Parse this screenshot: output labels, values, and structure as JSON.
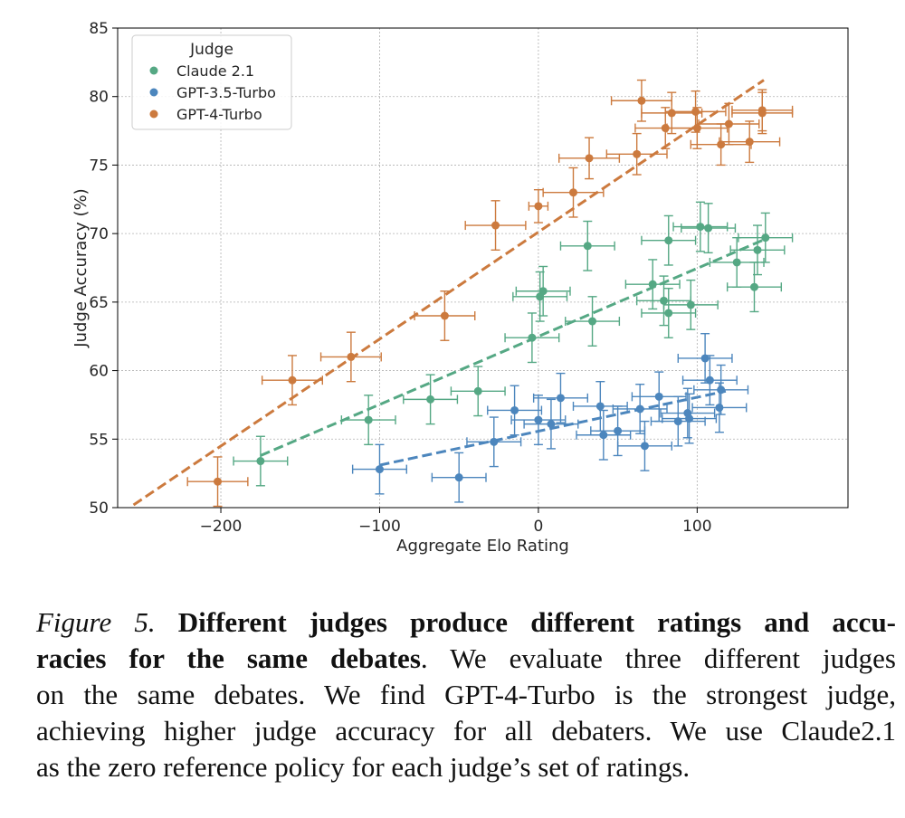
{
  "chart_data": {
    "type": "scatter",
    "xlabel": "Aggregate Elo Rating",
    "ylabel": "Judge Accuracy (%)",
    "xlim": [
      -265,
      195
    ],
    "ylim": [
      50,
      85
    ],
    "xticks": [
      -200,
      -100,
      0,
      100
    ],
    "xtick_labels": [
      "−200",
      "−100",
      "0",
      "100"
    ],
    "yticks": [
      50,
      55,
      60,
      65,
      70,
      75,
      80,
      85
    ],
    "ytick_labels": [
      "50",
      "55",
      "60",
      "65",
      "70",
      "75",
      "80",
      "85"
    ],
    "grid": true,
    "legend": {
      "title": "Judge",
      "placement": "top-left"
    },
    "series": [
      {
        "name": "Claude 2.1",
        "color": "#55a884",
        "points": [
          {
            "x": -175,
            "y": 53.4,
            "xerr": 17,
            "yerr": 1.8
          },
          {
            "x": -107,
            "y": 56.4,
            "xerr": 17,
            "yerr": 1.8
          },
          {
            "x": -68,
            "y": 57.9,
            "xerr": 17,
            "yerr": 1.8
          },
          {
            "x": -38,
            "y": 58.5,
            "xerr": 17,
            "yerr": 1.8
          },
          {
            "x": -4,
            "y": 62.4,
            "xerr": 17,
            "yerr": 1.8
          },
          {
            "x": 1,
            "y": 65.4,
            "xerr": 17,
            "yerr": 1.8
          },
          {
            "x": 3,
            "y": 65.8,
            "xerr": 17,
            "yerr": 1.8
          },
          {
            "x": 34,
            "y": 63.6,
            "xerr": 17,
            "yerr": 1.8
          },
          {
            "x": 31,
            "y": 69.1,
            "xerr": 17,
            "yerr": 1.8
          },
          {
            "x": 72,
            "y": 66.3,
            "xerr": 17,
            "yerr": 1.8
          },
          {
            "x": 79,
            "y": 65.1,
            "xerr": 17,
            "yerr": 1.8
          },
          {
            "x": 82,
            "y": 64.2,
            "xerr": 17,
            "yerr": 1.8
          },
          {
            "x": 82,
            "y": 69.5,
            "xerr": 17,
            "yerr": 1.8
          },
          {
            "x": 96,
            "y": 64.8,
            "xerr": 17,
            "yerr": 1.8
          },
          {
            "x": 102,
            "y": 70.5,
            "xerr": 17,
            "yerr": 1.8
          },
          {
            "x": 107,
            "y": 70.4,
            "xerr": 17,
            "yerr": 1.8
          },
          {
            "x": 125,
            "y": 67.9,
            "xerr": 17,
            "yerr": 1.8
          },
          {
            "x": 136,
            "y": 66.1,
            "xerr": 17,
            "yerr": 1.8
          },
          {
            "x": 138,
            "y": 68.8,
            "xerr": 17,
            "yerr": 1.8
          },
          {
            "x": 143,
            "y": 69.7,
            "xerr": 17,
            "yerr": 1.8
          }
        ],
        "trend": {
          "x": [
            -175,
            145
          ],
          "y": [
            53.8,
            69.7
          ]
        }
      },
      {
        "name": "GPT-3.5-Turbo",
        "color": "#4c86bd",
        "points": [
          {
            "x": -100,
            "y": 52.8,
            "xerr": 17,
            "yerr": 1.8
          },
          {
            "x": -50,
            "y": 52.2,
            "xerr": 17,
            "yerr": 1.8
          },
          {
            "x": -28,
            "y": 54.8,
            "xerr": 17,
            "yerr": 1.8
          },
          {
            "x": -15,
            "y": 57.1,
            "xerr": 17,
            "yerr": 1.8
          },
          {
            "x": 0,
            "y": 56.4,
            "xerr": 17,
            "yerr": 1.8
          },
          {
            "x": 8,
            "y": 56.1,
            "xerr": 17,
            "yerr": 1.8
          },
          {
            "x": 14,
            "y": 58.0,
            "xerr": 17,
            "yerr": 1.8
          },
          {
            "x": 39,
            "y": 57.4,
            "xerr": 17,
            "yerr": 1.8
          },
          {
            "x": 41,
            "y": 55.3,
            "xerr": 17,
            "yerr": 1.8
          },
          {
            "x": 50,
            "y": 55.6,
            "xerr": 17,
            "yerr": 1.8
          },
          {
            "x": 64,
            "y": 57.2,
            "xerr": 17,
            "yerr": 1.8
          },
          {
            "x": 67,
            "y": 54.5,
            "xerr": 17,
            "yerr": 1.8
          },
          {
            "x": 76,
            "y": 58.1,
            "xerr": 17,
            "yerr": 1.8
          },
          {
            "x": 88,
            "y": 56.3,
            "xerr": 17,
            "yerr": 1.8
          },
          {
            "x": 94,
            "y": 56.9,
            "xerr": 17,
            "yerr": 1.8
          },
          {
            "x": 95,
            "y": 56.5,
            "xerr": 17,
            "yerr": 1.8
          },
          {
            "x": 105,
            "y": 60.9,
            "xerr": 17,
            "yerr": 1.8
          },
          {
            "x": 108,
            "y": 59.3,
            "xerr": 17,
            "yerr": 1.8
          },
          {
            "x": 114,
            "y": 57.3,
            "xerr": 17,
            "yerr": 1.8
          },
          {
            "x": 115,
            "y": 58.6,
            "xerr": 17,
            "yerr": 1.8
          }
        ],
        "trend": {
          "x": [
            -100,
            118
          ],
          "y": [
            53.1,
            58.5
          ]
        }
      },
      {
        "name": "GPT-4-Turbo",
        "color": "#cc7a3e",
        "points": [
          {
            "x": -202,
            "y": 51.9,
            "xerr": 19,
            "yerr": 1.8
          },
          {
            "x": -155,
            "y": 59.3,
            "xerr": 19,
            "yerr": 1.8
          },
          {
            "x": -118,
            "y": 61.0,
            "xerr": 19,
            "yerr": 1.8
          },
          {
            "x": -59,
            "y": 64.0,
            "xerr": 19,
            "yerr": 1.8
          },
          {
            "x": -27,
            "y": 70.6,
            "xerr": 19,
            "yerr": 1.8
          },
          {
            "x": 0,
            "y": 72.0,
            "xerr": 6,
            "yerr": 1.2
          },
          {
            "x": 22,
            "y": 73.0,
            "xerr": 19,
            "yerr": 1.8
          },
          {
            "x": 32,
            "y": 75.5,
            "xerr": 19,
            "yerr": 1.5
          },
          {
            "x": 62,
            "y": 75.8,
            "xerr": 19,
            "yerr": 1.5
          },
          {
            "x": 65,
            "y": 79.7,
            "xerr": 19,
            "yerr": 1.5
          },
          {
            "x": 80,
            "y": 77.7,
            "xerr": 19,
            "yerr": 1.5
          },
          {
            "x": 84,
            "y": 78.8,
            "xerr": 19,
            "yerr": 1.5
          },
          {
            "x": 99,
            "y": 78.9,
            "xerr": 19,
            "yerr": 1.5
          },
          {
            "x": 100,
            "y": 77.7,
            "xerr": 19,
            "yerr": 1.5
          },
          {
            "x": 115,
            "y": 76.5,
            "xerr": 19,
            "yerr": 1.5
          },
          {
            "x": 120,
            "y": 78.0,
            "xerr": 19,
            "yerr": 1.5
          },
          {
            "x": 133,
            "y": 76.7,
            "xerr": 19,
            "yerr": 1.5
          },
          {
            "x": 141,
            "y": 79.0,
            "xerr": 19,
            "yerr": 1.5
          },
          {
            "x": 141,
            "y": 78.8,
            "xerr": 19,
            "yerr": 1.5
          }
        ],
        "trend": {
          "x": [
            -255,
            142
          ],
          "y": [
            50.2,
            81.2
          ]
        }
      }
    ]
  },
  "caption": {
    "figure_label": "Figure 5.",
    "bold_part_1": "Different judges produce different ratings and accu-",
    "bold_part_2": "racies for the same debates",
    "line_1_rest": ". We evaluate three different judges",
    "line_2": "on the same debates. We find GPT-4-Turbo is the strongest judge,",
    "line_3": "achieving higher judge accuracy for all debaters. We use Claude2.1",
    "line_4": "as the zero reference policy for each judge’s set of ratings."
  }
}
